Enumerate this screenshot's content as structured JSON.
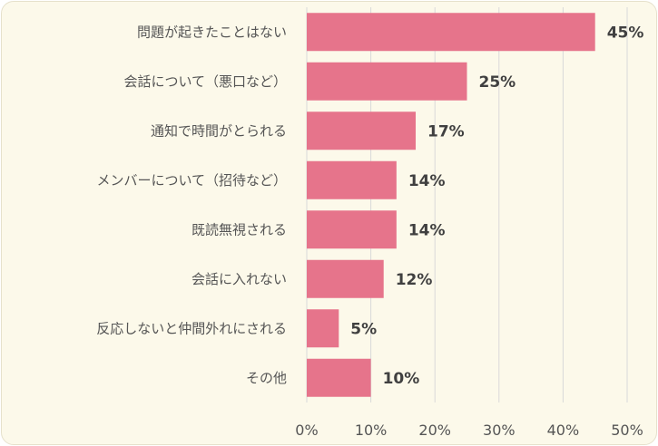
{
  "chart_data": {
    "type": "bar",
    "orientation": "horizontal",
    "categories": [
      "問題が起きたことはない",
      "会話について（悪口など）",
      "通知で時間がとられる",
      "メンバーについて（招待など）",
      "既読無視される",
      "会話に入れない",
      "反応しないと仲間外れにされる",
      "その他"
    ],
    "values": [
      45,
      25,
      17,
      14,
      14,
      12,
      5,
      10
    ],
    "value_labels": [
      "45%",
      "25%",
      "17%",
      "14%",
      "14%",
      "12%",
      "5%",
      "10%"
    ],
    "xlim": [
      0,
      50
    ],
    "ticks": [
      0,
      10,
      20,
      30,
      40,
      50
    ],
    "tick_labels": [
      "0%",
      "10%",
      "20%",
      "30%",
      "40%",
      "50%"
    ],
    "grid": true,
    "legend": "none"
  },
  "colors": {
    "bar": "#e6748b",
    "background": "#fcf9ea",
    "grid": "#d9d9d9",
    "text": "#555555"
  }
}
